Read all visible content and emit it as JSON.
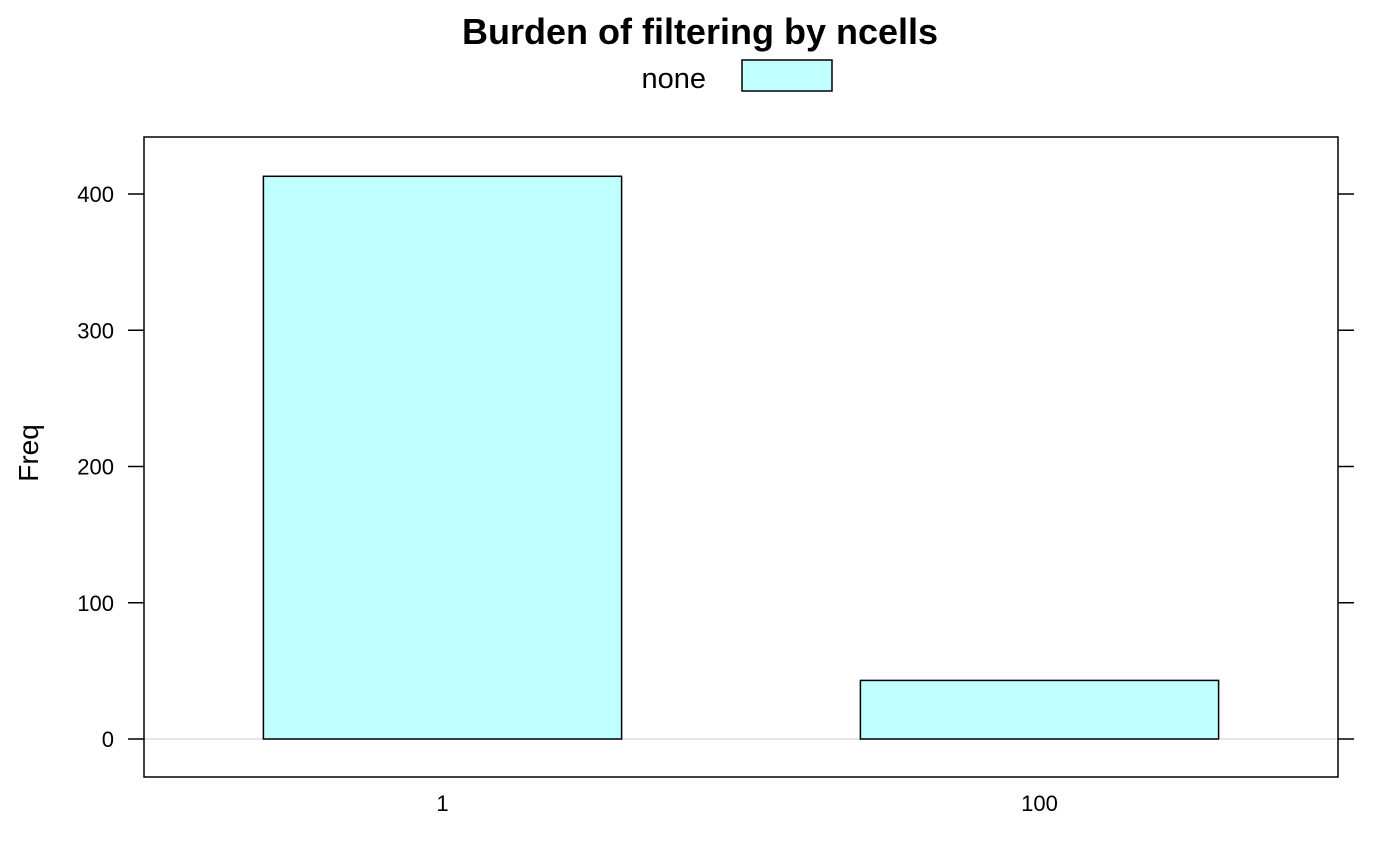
{
  "chart_data": {
    "type": "bar",
    "title": "Burden of filtering by ncells",
    "xlabel": "",
    "ylabel": "Freq",
    "categories": [
      "1",
      "100"
    ],
    "series": [
      {
        "name": "none",
        "values": [
          413,
          43
        ],
        "color": "#C0FFFF"
      }
    ],
    "ylim": [
      -28.3,
      441.3
    ],
    "yticks": [
      0,
      100,
      200,
      300,
      400
    ],
    "grid": false,
    "reference_line_y": 0,
    "reference_line_color": "#E6E6E6",
    "legend": "top",
    "bar_outline_color": "#000000"
  }
}
